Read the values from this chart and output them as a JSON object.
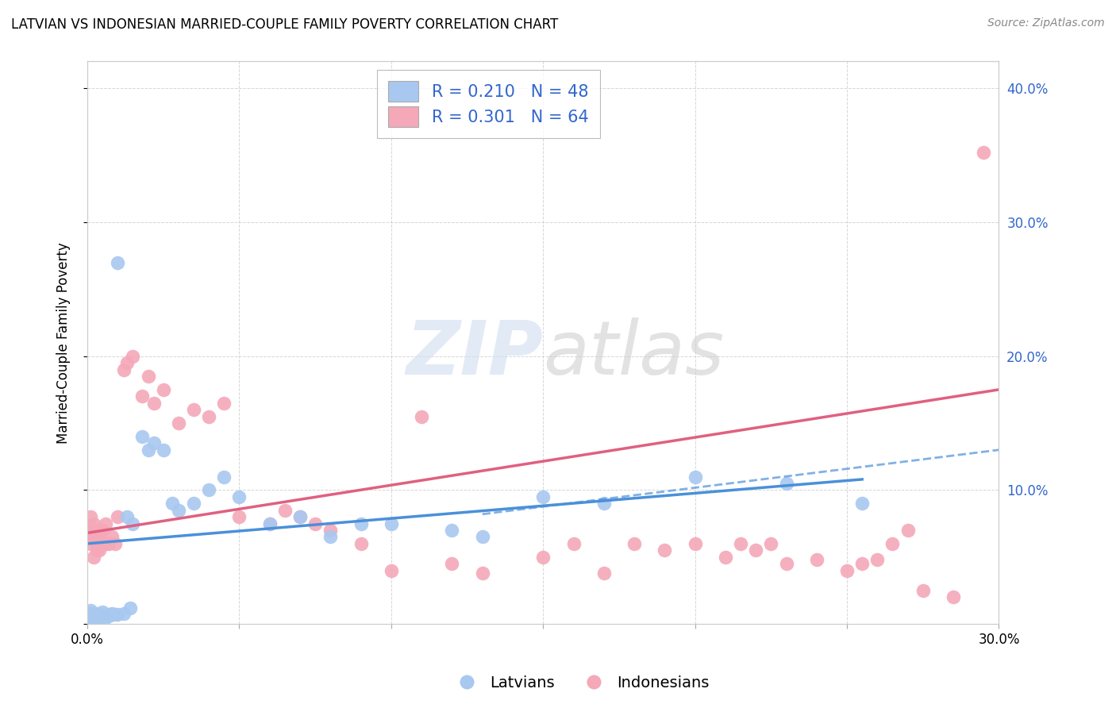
{
  "title": "LATVIAN VS INDONESIAN MARRIED-COUPLE FAMILY POVERTY CORRELATION CHART",
  "source": "Source: ZipAtlas.com",
  "ylabel": "Married-Couple Family Poverty",
  "xlim": [
    0.0,
    0.3
  ],
  "ylim": [
    0.0,
    0.42
  ],
  "xticks": [
    0.0,
    0.05,
    0.1,
    0.15,
    0.2,
    0.25,
    0.3
  ],
  "yticks": [
    0.0,
    0.1,
    0.2,
    0.3,
    0.4
  ],
  "latvian_color": "#A8C8F0",
  "latvian_line_color": "#4A90D9",
  "indonesian_color": "#F4A8B8",
  "indonesian_line_color": "#E06080",
  "latvian_R": 0.21,
  "latvian_N": 48,
  "indonesian_R": 0.301,
  "indonesian_N": 64,
  "watermark": "ZIPatlas",
  "background_color": "#ffffff",
  "grid_color": "#cccccc",
  "legend_text_color": "#3366CC",
  "latvians_x": [
    0.001,
    0.001,
    0.001,
    0.002,
    0.002,
    0.002,
    0.002,
    0.002,
    0.003,
    0.003,
    0.003,
    0.004,
    0.004,
    0.005,
    0.005,
    0.006,
    0.007,
    0.007,
    0.008,
    0.009,
    0.01,
    0.01,
    0.012,
    0.013,
    0.014,
    0.015,
    0.018,
    0.02,
    0.022,
    0.025,
    0.028,
    0.03,
    0.035,
    0.04,
    0.045,
    0.05,
    0.06,
    0.07,
    0.08,
    0.09,
    0.1,
    0.12,
    0.13,
    0.15,
    0.17,
    0.2,
    0.23,
    0.255
  ],
  "latvians_y": [
    0.01,
    0.008,
    0.005,
    0.003,
    0.005,
    0.007,
    0.006,
    0.004,
    0.006,
    0.008,
    0.005,
    0.004,
    0.007,
    0.006,
    0.009,
    0.005,
    0.007,
    0.006,
    0.008,
    0.007,
    0.007,
    0.27,
    0.008,
    0.08,
    0.012,
    0.075,
    0.14,
    0.13,
    0.135,
    0.13,
    0.09,
    0.085,
    0.09,
    0.1,
    0.11,
    0.095,
    0.075,
    0.08,
    0.065,
    0.075,
    0.075,
    0.07,
    0.065,
    0.095,
    0.09,
    0.11,
    0.105,
    0.09
  ],
  "indonesians_x": [
    0.001,
    0.001,
    0.001,
    0.001,
    0.002,
    0.002,
    0.002,
    0.002,
    0.003,
    0.003,
    0.003,
    0.004,
    0.004,
    0.004,
    0.005,
    0.005,
    0.006,
    0.006,
    0.007,
    0.008,
    0.009,
    0.01,
    0.012,
    0.013,
    0.015,
    0.018,
    0.02,
    0.022,
    0.025,
    0.03,
    0.035,
    0.04,
    0.045,
    0.05,
    0.06,
    0.065,
    0.07,
    0.075,
    0.08,
    0.09,
    0.1,
    0.11,
    0.12,
    0.13,
    0.15,
    0.16,
    0.17,
    0.18,
    0.19,
    0.2,
    0.21,
    0.215,
    0.22,
    0.225,
    0.23,
    0.24,
    0.25,
    0.255,
    0.26,
    0.265,
    0.27,
    0.275,
    0.285,
    0.295
  ],
  "indonesians_y": [
    0.06,
    0.065,
    0.07,
    0.08,
    0.05,
    0.065,
    0.07,
    0.075,
    0.055,
    0.06,
    0.07,
    0.055,
    0.065,
    0.07,
    0.06,
    0.07,
    0.06,
    0.075,
    0.06,
    0.065,
    0.06,
    0.08,
    0.19,
    0.195,
    0.2,
    0.17,
    0.185,
    0.165,
    0.175,
    0.15,
    0.16,
    0.155,
    0.165,
    0.08,
    0.075,
    0.085,
    0.08,
    0.075,
    0.07,
    0.06,
    0.04,
    0.155,
    0.045,
    0.038,
    0.05,
    0.06,
    0.038,
    0.06,
    0.055,
    0.06,
    0.05,
    0.06,
    0.055,
    0.06,
    0.045,
    0.048,
    0.04,
    0.045,
    0.048,
    0.06,
    0.07,
    0.025,
    0.02,
    0.352
  ]
}
